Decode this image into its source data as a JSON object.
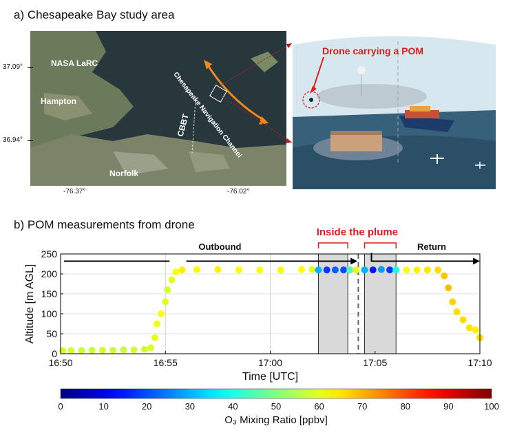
{
  "panel_a": {
    "title": "a) Chesapeake  Bay study area",
    "map_labels": {
      "nasa": "NASA LaRC",
      "hampton": "Hampton",
      "norfolk": "Norfolk",
      "cbbt": "CBBT",
      "channel": "Chesapeake Navigation Channel"
    },
    "lat_ticks": [
      "37.09°",
      "36.94°"
    ],
    "lon_ticks": [
      "-76.37°",
      "-76.02°"
    ],
    "drone_callout": "Drone carrying a POM"
  },
  "panel_b": {
    "title": "b) POM measurements from drone",
    "plume_label": "Inside the plume",
    "outbound_label": "Outbound",
    "return_label": "Return",
    "colorbar_label": "O₃ Mixing Ratio [ppbv]",
    "colorbar_ticks": [
      "0",
      "10",
      "20",
      "30",
      "40",
      "50",
      "60",
      "70",
      "80",
      "90",
      "100"
    ]
  },
  "chart_data": {
    "type": "scatter",
    "xlabel": "Time [UTC]",
    "ylabel": "Altitude [m AGL]",
    "xlim": [
      "16:50",
      "17:10"
    ],
    "x_ticks": [
      "16:50",
      "16:55",
      "17:00",
      "17:05",
      "17:10"
    ],
    "ylim": [
      0,
      250
    ],
    "y_ticks": [
      "0",
      "50",
      "100",
      "150",
      "200",
      "250"
    ],
    "color_scale": {
      "label": "O3 Mixing Ratio [ppbv]",
      "min": 0,
      "max": 100,
      "colormap": "jet"
    },
    "shaded_intervals": [
      [
        "17:02.3",
        "17:03.7"
      ],
      [
        "17:04.5",
        "17:06.0"
      ]
    ],
    "dashed_line_x": "17:04.2",
    "points": [
      {
        "t": "16:50.1",
        "alt": 8,
        "o3": 58
      },
      {
        "t": "16:50.5",
        "alt": 8,
        "o3": 58
      },
      {
        "t": "16:51.0",
        "alt": 8,
        "o3": 57
      },
      {
        "t": "16:51.5",
        "alt": 9,
        "o3": 57
      },
      {
        "t": "16:52.0",
        "alt": 9,
        "o3": 58
      },
      {
        "t": "16:52.5",
        "alt": 9,
        "o3": 58
      },
      {
        "t": "16:53.0",
        "alt": 10,
        "o3": 57
      },
      {
        "t": "16:53.5",
        "alt": 10,
        "o3": 58
      },
      {
        "t": "16:54.0",
        "alt": 11,
        "o3": 58
      },
      {
        "t": "16:54.3",
        "alt": 15,
        "o3": 59
      },
      {
        "t": "16:54.5",
        "alt": 40,
        "o3": 60
      },
      {
        "t": "16:54.6",
        "alt": 75,
        "o3": 61
      },
      {
        "t": "16:54.8",
        "alt": 100,
        "o3": 62
      },
      {
        "t": "16:55.0",
        "alt": 130,
        "o3": 60
      },
      {
        "t": "16:55.1",
        "alt": 160,
        "o3": 58
      },
      {
        "t": "16:55.3",
        "alt": 185,
        "o3": 60
      },
      {
        "t": "16:55.5",
        "alt": 205,
        "o3": 62
      },
      {
        "t": "16:55.8",
        "alt": 210,
        "o3": 64
      },
      {
        "t": "16:56.5",
        "alt": 211,
        "o3": 63
      },
      {
        "t": "16:57.5",
        "alt": 211,
        "o3": 64
      },
      {
        "t": "16:58.5",
        "alt": 210,
        "o3": 63
      },
      {
        "t": "16:59.5",
        "alt": 210,
        "o3": 62
      },
      {
        "t": "17:00.5",
        "alt": 210,
        "o3": 63
      },
      {
        "t": "17:01.5",
        "alt": 211,
        "o3": 62
      },
      {
        "t": "17:02.0",
        "alt": 211,
        "o3": 60
      },
      {
        "t": "17:02.3",
        "alt": 210,
        "o3": 30
      },
      {
        "t": "17:02.7",
        "alt": 210,
        "o3": 18
      },
      {
        "t": "17:03.1",
        "alt": 210,
        "o3": 22
      },
      {
        "t": "17:03.5",
        "alt": 210,
        "o3": 20
      },
      {
        "t": "17:03.8",
        "alt": 210,
        "o3": 45
      },
      {
        "t": "17:04.1",
        "alt": 210,
        "o3": 60
      },
      {
        "t": "17:04.5",
        "alt": 210,
        "o3": 30
      },
      {
        "t": "17:04.9",
        "alt": 210,
        "o3": 15
      },
      {
        "t": "17:05.3",
        "alt": 211,
        "o3": 28
      },
      {
        "t": "17:05.7",
        "alt": 210,
        "o3": 18
      },
      {
        "t": "17:06.0",
        "alt": 210,
        "o3": 40
      },
      {
        "t": "17:06.5",
        "alt": 210,
        "o3": 62
      },
      {
        "t": "17:07.0",
        "alt": 210,
        "o3": 64
      },
      {
        "t": "17:07.5",
        "alt": 210,
        "o3": 65
      },
      {
        "t": "17:08.0",
        "alt": 210,
        "o3": 66
      },
      {
        "t": "17:08.3",
        "alt": 195,
        "o3": 68
      },
      {
        "t": "17:08.5",
        "alt": 165,
        "o3": 69
      },
      {
        "t": "17:08.7",
        "alt": 130,
        "o3": 67
      },
      {
        "t": "17:08.9",
        "alt": 105,
        "o3": 66
      },
      {
        "t": "17:09.2",
        "alt": 85,
        "o3": 66
      },
      {
        "t": "17:09.5",
        "alt": 65,
        "o3": 65
      },
      {
        "t": "17:09.8",
        "alt": 60,
        "o3": 64
      },
      {
        "t": "17:10.0",
        "alt": 40,
        "o3": 66
      }
    ]
  }
}
